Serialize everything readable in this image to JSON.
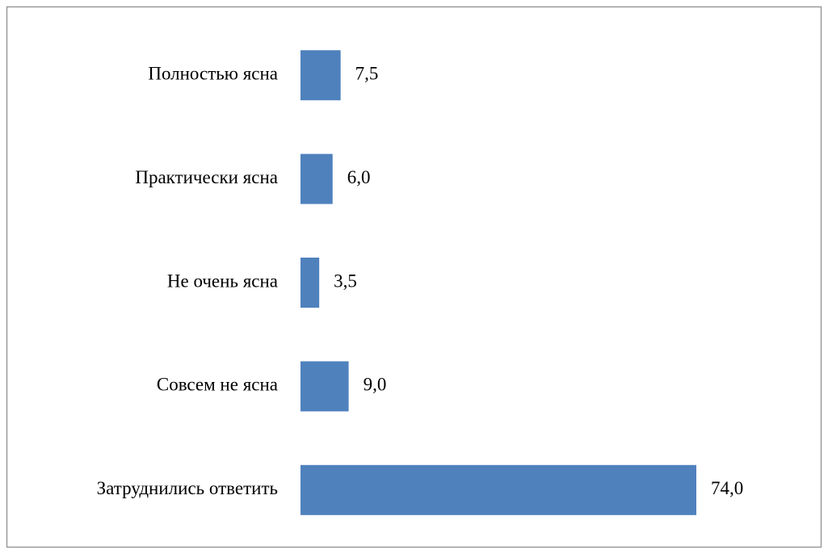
{
  "chart_data": {
    "type": "bar",
    "orientation": "horizontal",
    "categories": [
      "Полностью ясна",
      "Практически ясна",
      "Не очень ясна",
      "Совсем не ясна",
      "Затруднились ответить"
    ],
    "values": [
      7.5,
      6.0,
      3.5,
      9.0,
      74.0
    ],
    "value_labels": [
      "7,5",
      "6,0",
      "3,5",
      "9,0",
      "74,0"
    ],
    "color": "#4f81bd"
  }
}
